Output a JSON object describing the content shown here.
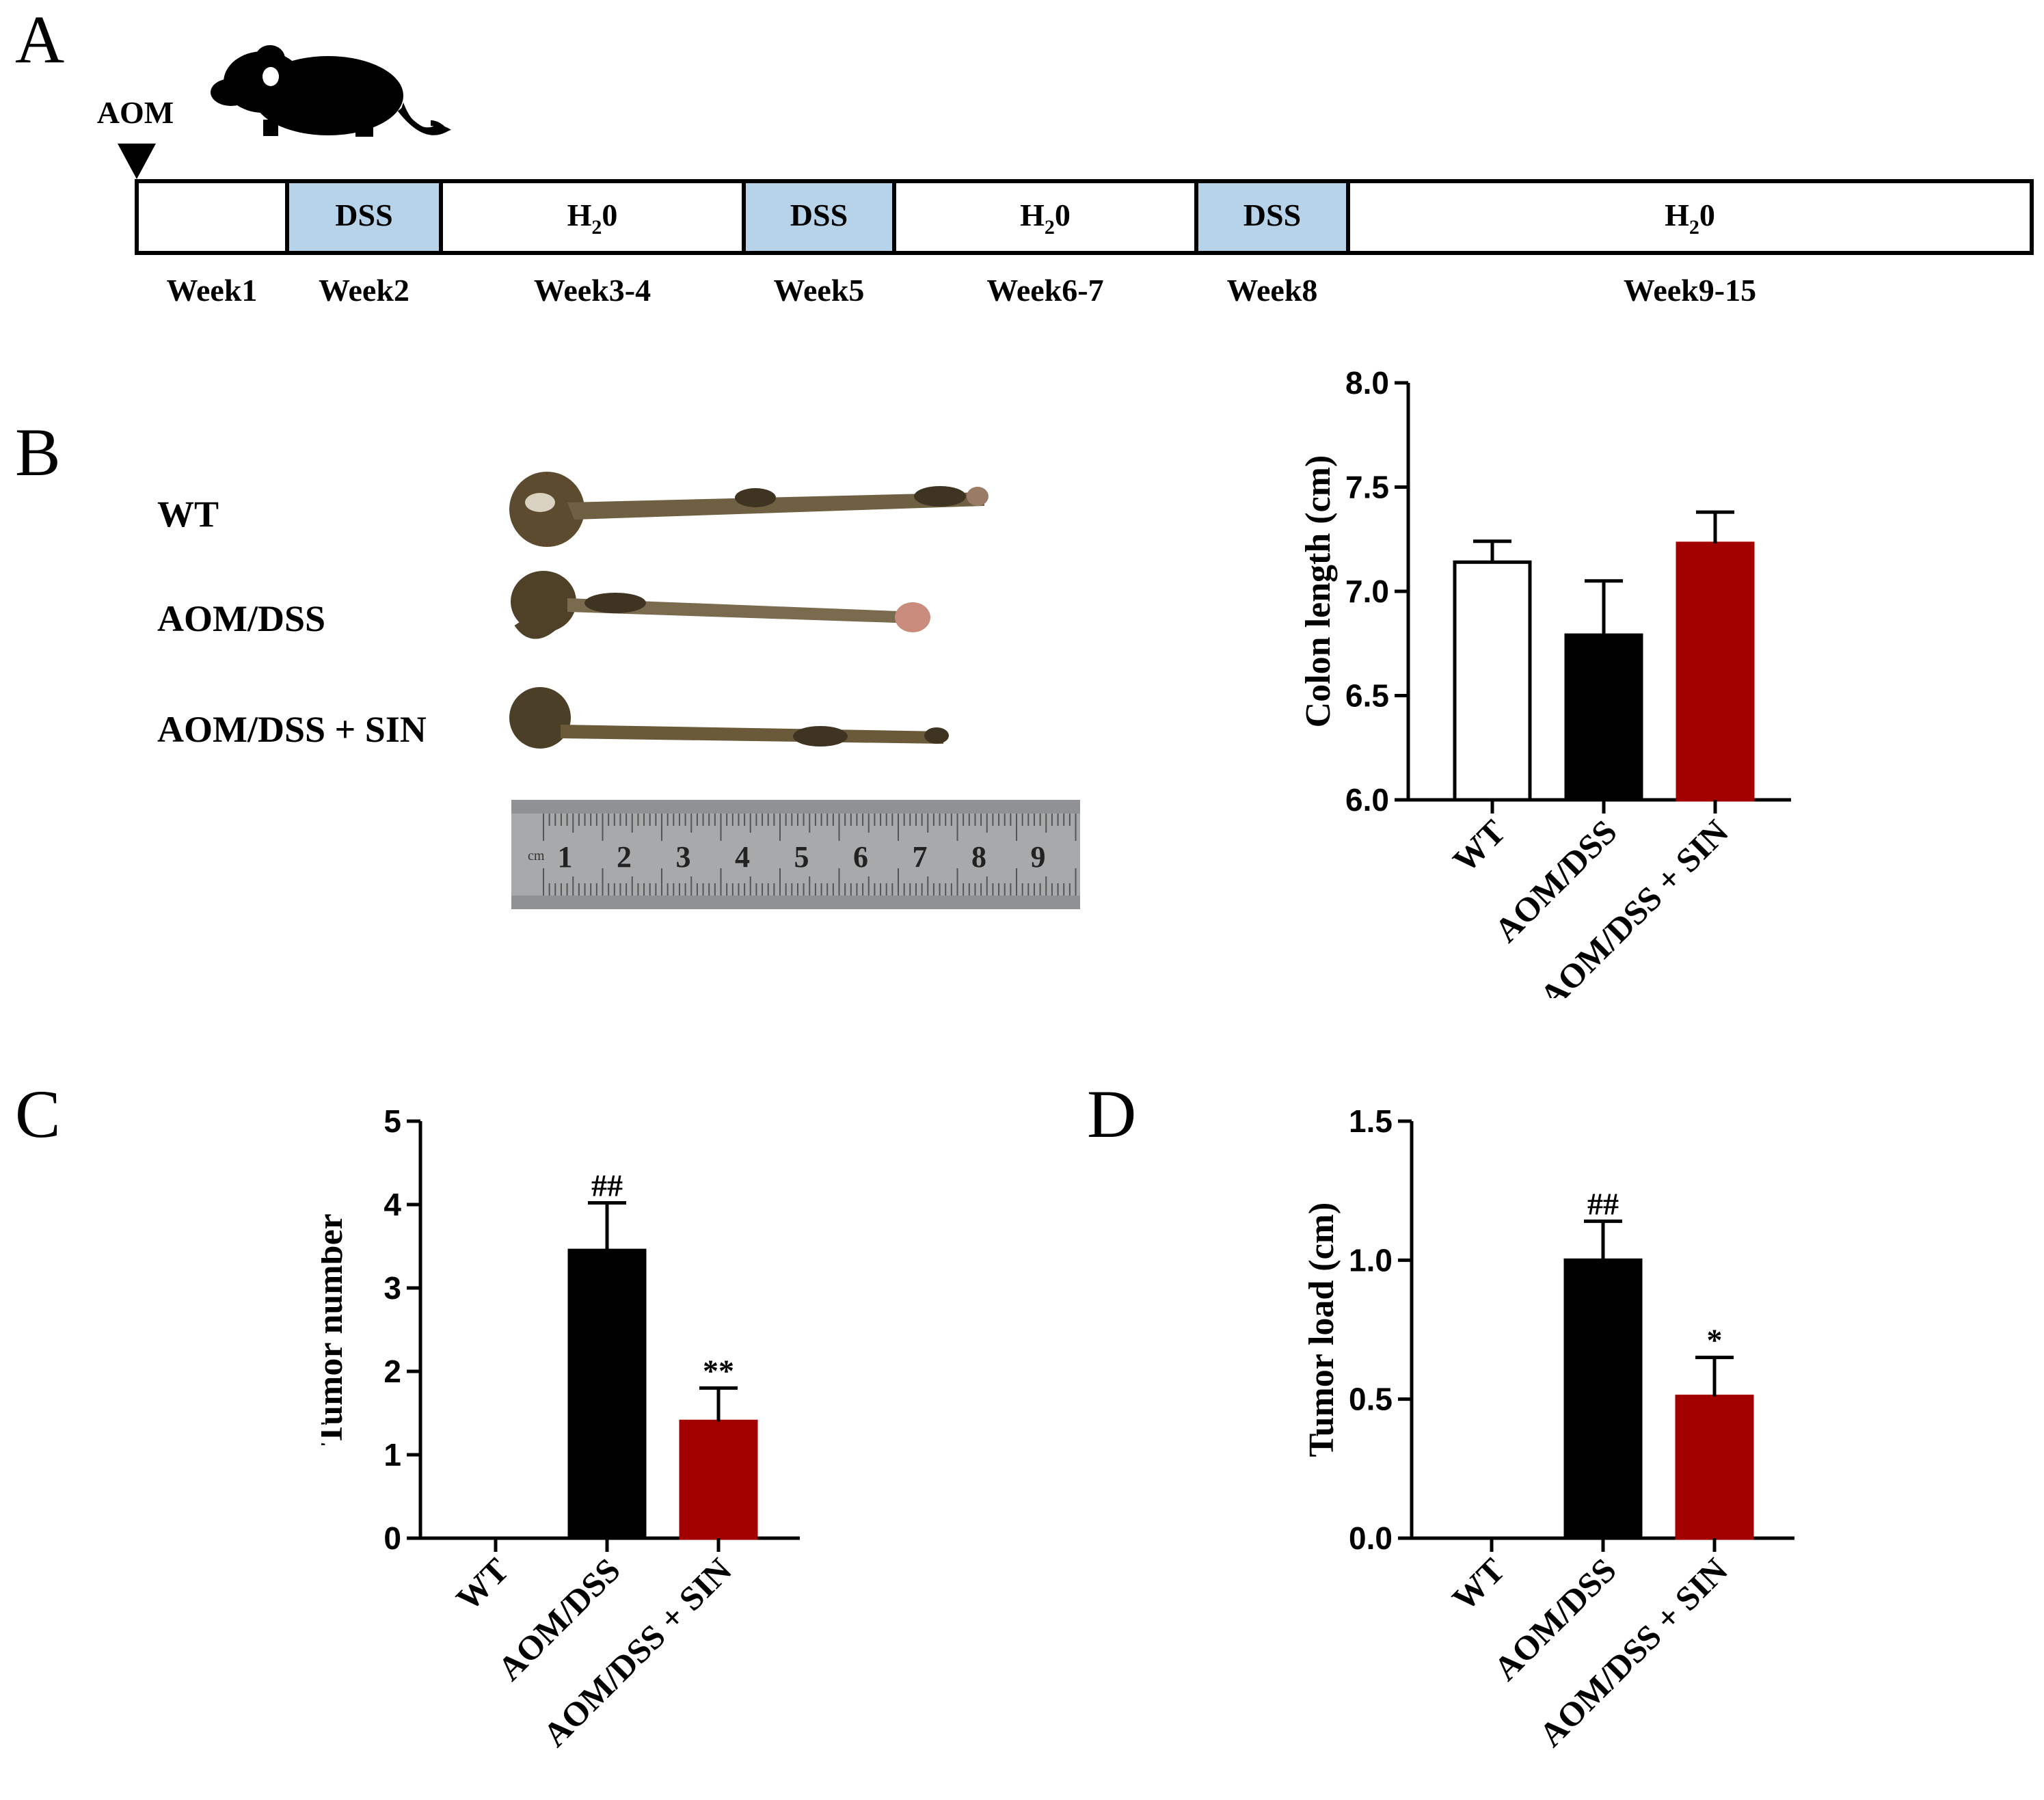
{
  "panels": {
    "a": "A",
    "b": "B",
    "c": "C",
    "d": "D"
  },
  "timeline": {
    "marker": "AOM",
    "segments": [
      {
        "text": "",
        "sub": "",
        "week": "Week1",
        "fill": "#ffffff"
      },
      {
        "text": "DSS",
        "sub": "",
        "week": "Week2",
        "fill": "#b7d3ea"
      },
      {
        "text": "H",
        "sub": "2",
        "tail": "0",
        "week": "Week3-4",
        "fill": "#ffffff"
      },
      {
        "text": "DSS",
        "sub": "",
        "week": "Week5",
        "fill": "#b7d3ea"
      },
      {
        "text": "H",
        "sub": "2",
        "tail": "0",
        "week": "Week6-7",
        "fill": "#ffffff"
      },
      {
        "text": "DSS",
        "sub": "",
        "week": "Week8",
        "fill": "#b7d3ea"
      },
      {
        "text": "H",
        "sub": "2",
        "tail": "0",
        "week": "Week9-15",
        "fill": "#ffffff"
      }
    ]
  },
  "photo": {
    "groups": [
      "WT",
      "AOM/DSS",
      "AOM/DSS + SIN"
    ],
    "ruler_marks": [
      "1",
      "2",
      "3",
      "4",
      "5",
      "6",
      "7",
      "8",
      "9"
    ],
    "ruler_unit": "cm",
    "colors": {
      "tissue": "#6b5a3a",
      "tissue_dark": "#3f3422",
      "ruler": "#a7a9ab"
    }
  },
  "chart_data": [
    {
      "id": "B",
      "type": "bar",
      "ylabel": "Colon length (cm)",
      "categories": [
        "WT",
        "AOM/DSS",
        "AOM/DSS + SIN"
      ],
      "values": [
        7.14,
        6.79,
        7.23
      ],
      "errors": [
        0.1,
        0.26,
        0.15
      ],
      "colors": [
        "#ffffff",
        "#000000",
        "#a30000"
      ],
      "annotations": [
        "",
        "",
        ""
      ],
      "ylim": [
        6.0,
        8.0
      ],
      "yticks": [
        "6.0",
        "6.5",
        "7.0",
        "7.5",
        "8.0"
      ]
    },
    {
      "id": "C",
      "type": "bar",
      "ylabel": "Tumor number",
      "categories": [
        "WT",
        "AOM/DSS",
        "AOM/DSS + SIN"
      ],
      "values": [
        0,
        3.45,
        1.4
      ],
      "errors": [
        0,
        0.57,
        0.4
      ],
      "colors": [
        "#ffffff",
        "#000000",
        "#a30000"
      ],
      "annotations": [
        "",
        "##",
        "**"
      ],
      "ylim": [
        0,
        5
      ],
      "yticks": [
        "0",
        "1",
        "2",
        "3",
        "4",
        "5"
      ]
    },
    {
      "id": "D",
      "type": "bar",
      "ylabel": "Tumor load (cm)",
      "categories": [
        "WT",
        "AOM/DSS",
        "AOM/DSS + SIN"
      ],
      "values": [
        0,
        1.0,
        0.51
      ],
      "errors": [
        0,
        0.14,
        0.14
      ],
      "colors": [
        "#ffffff",
        "#000000",
        "#a30000"
      ],
      "annotations": [
        "",
        "##",
        "*"
      ],
      "ylim": [
        0,
        1.5
      ],
      "yticks": [
        "0.0",
        "0.5",
        "1.0",
        "1.5"
      ]
    }
  ]
}
